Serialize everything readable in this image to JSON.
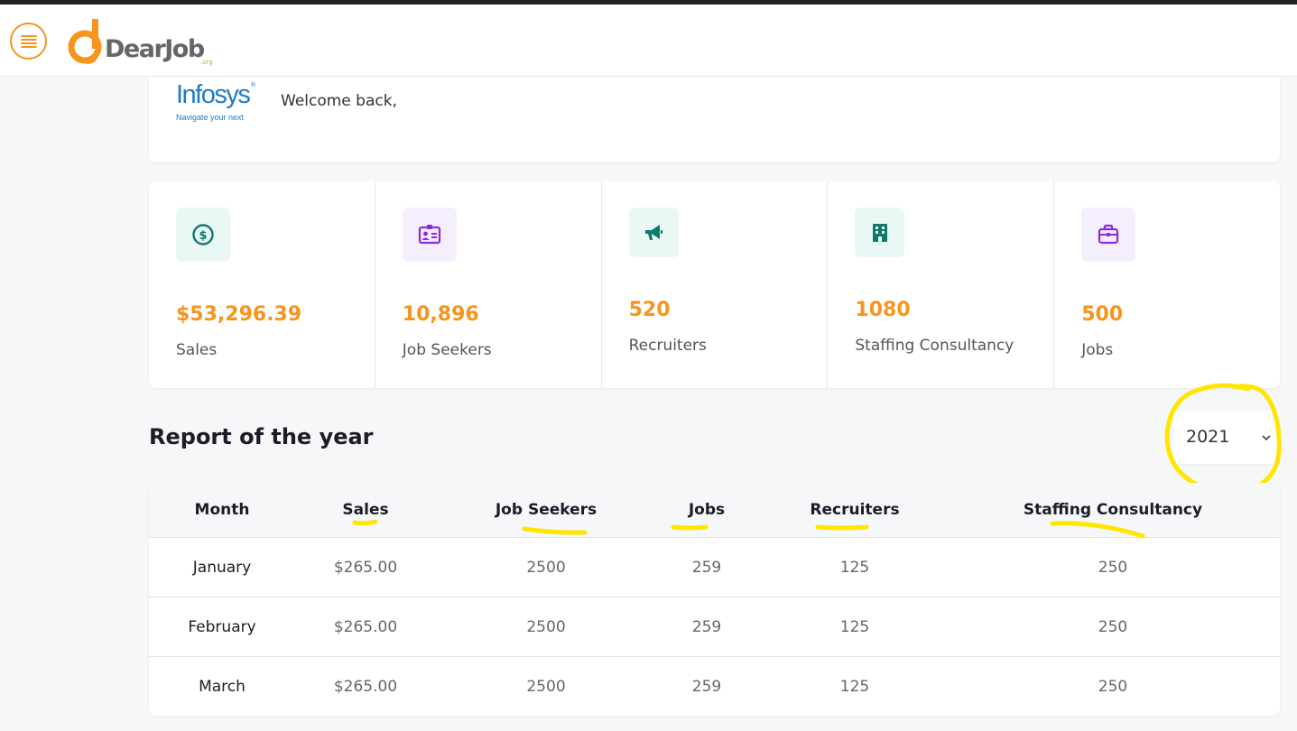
{
  "header": {
    "brand_name": "DearJob",
    "brand_suffix": ".org"
  },
  "welcome": {
    "company_name": "Infosys",
    "company_reg": "®",
    "company_tagline": "Navigate your next",
    "text": "Welcome back,"
  },
  "stats": [
    {
      "value": "$53,296.39",
      "label": "Sales",
      "icon": "dollar-icon"
    },
    {
      "value": "10,896",
      "label": "Job Seekers",
      "icon": "id-card-icon"
    },
    {
      "value": "520",
      "label": "Recruiters",
      "icon": "megaphone-icon"
    },
    {
      "value": "1080",
      "label": "Staffing Consultancy",
      "icon": "building-icon"
    },
    {
      "value": "500",
      "label": "Jobs",
      "icon": "briefcase-icon"
    }
  ],
  "report": {
    "title": "Report of the year",
    "year": "2021"
  },
  "table": {
    "headers": [
      "Month",
      "Sales",
      "Job Seekers",
      "Jobs",
      "Recruiters",
      "Staffing Consultancy"
    ],
    "rows": [
      [
        "January",
        "$265.00",
        "2500",
        "259",
        "125",
        "250"
      ],
      [
        "February",
        "$265.00",
        "2500",
        "259",
        "125",
        "250"
      ],
      [
        "March",
        "$265.00",
        "2500",
        "259",
        "125",
        "250"
      ]
    ]
  },
  "colors": {
    "accent": "#f7941d",
    "teal": "#0f7a6c",
    "purple": "#8a2be2",
    "annotation": "#ffe600"
  }
}
